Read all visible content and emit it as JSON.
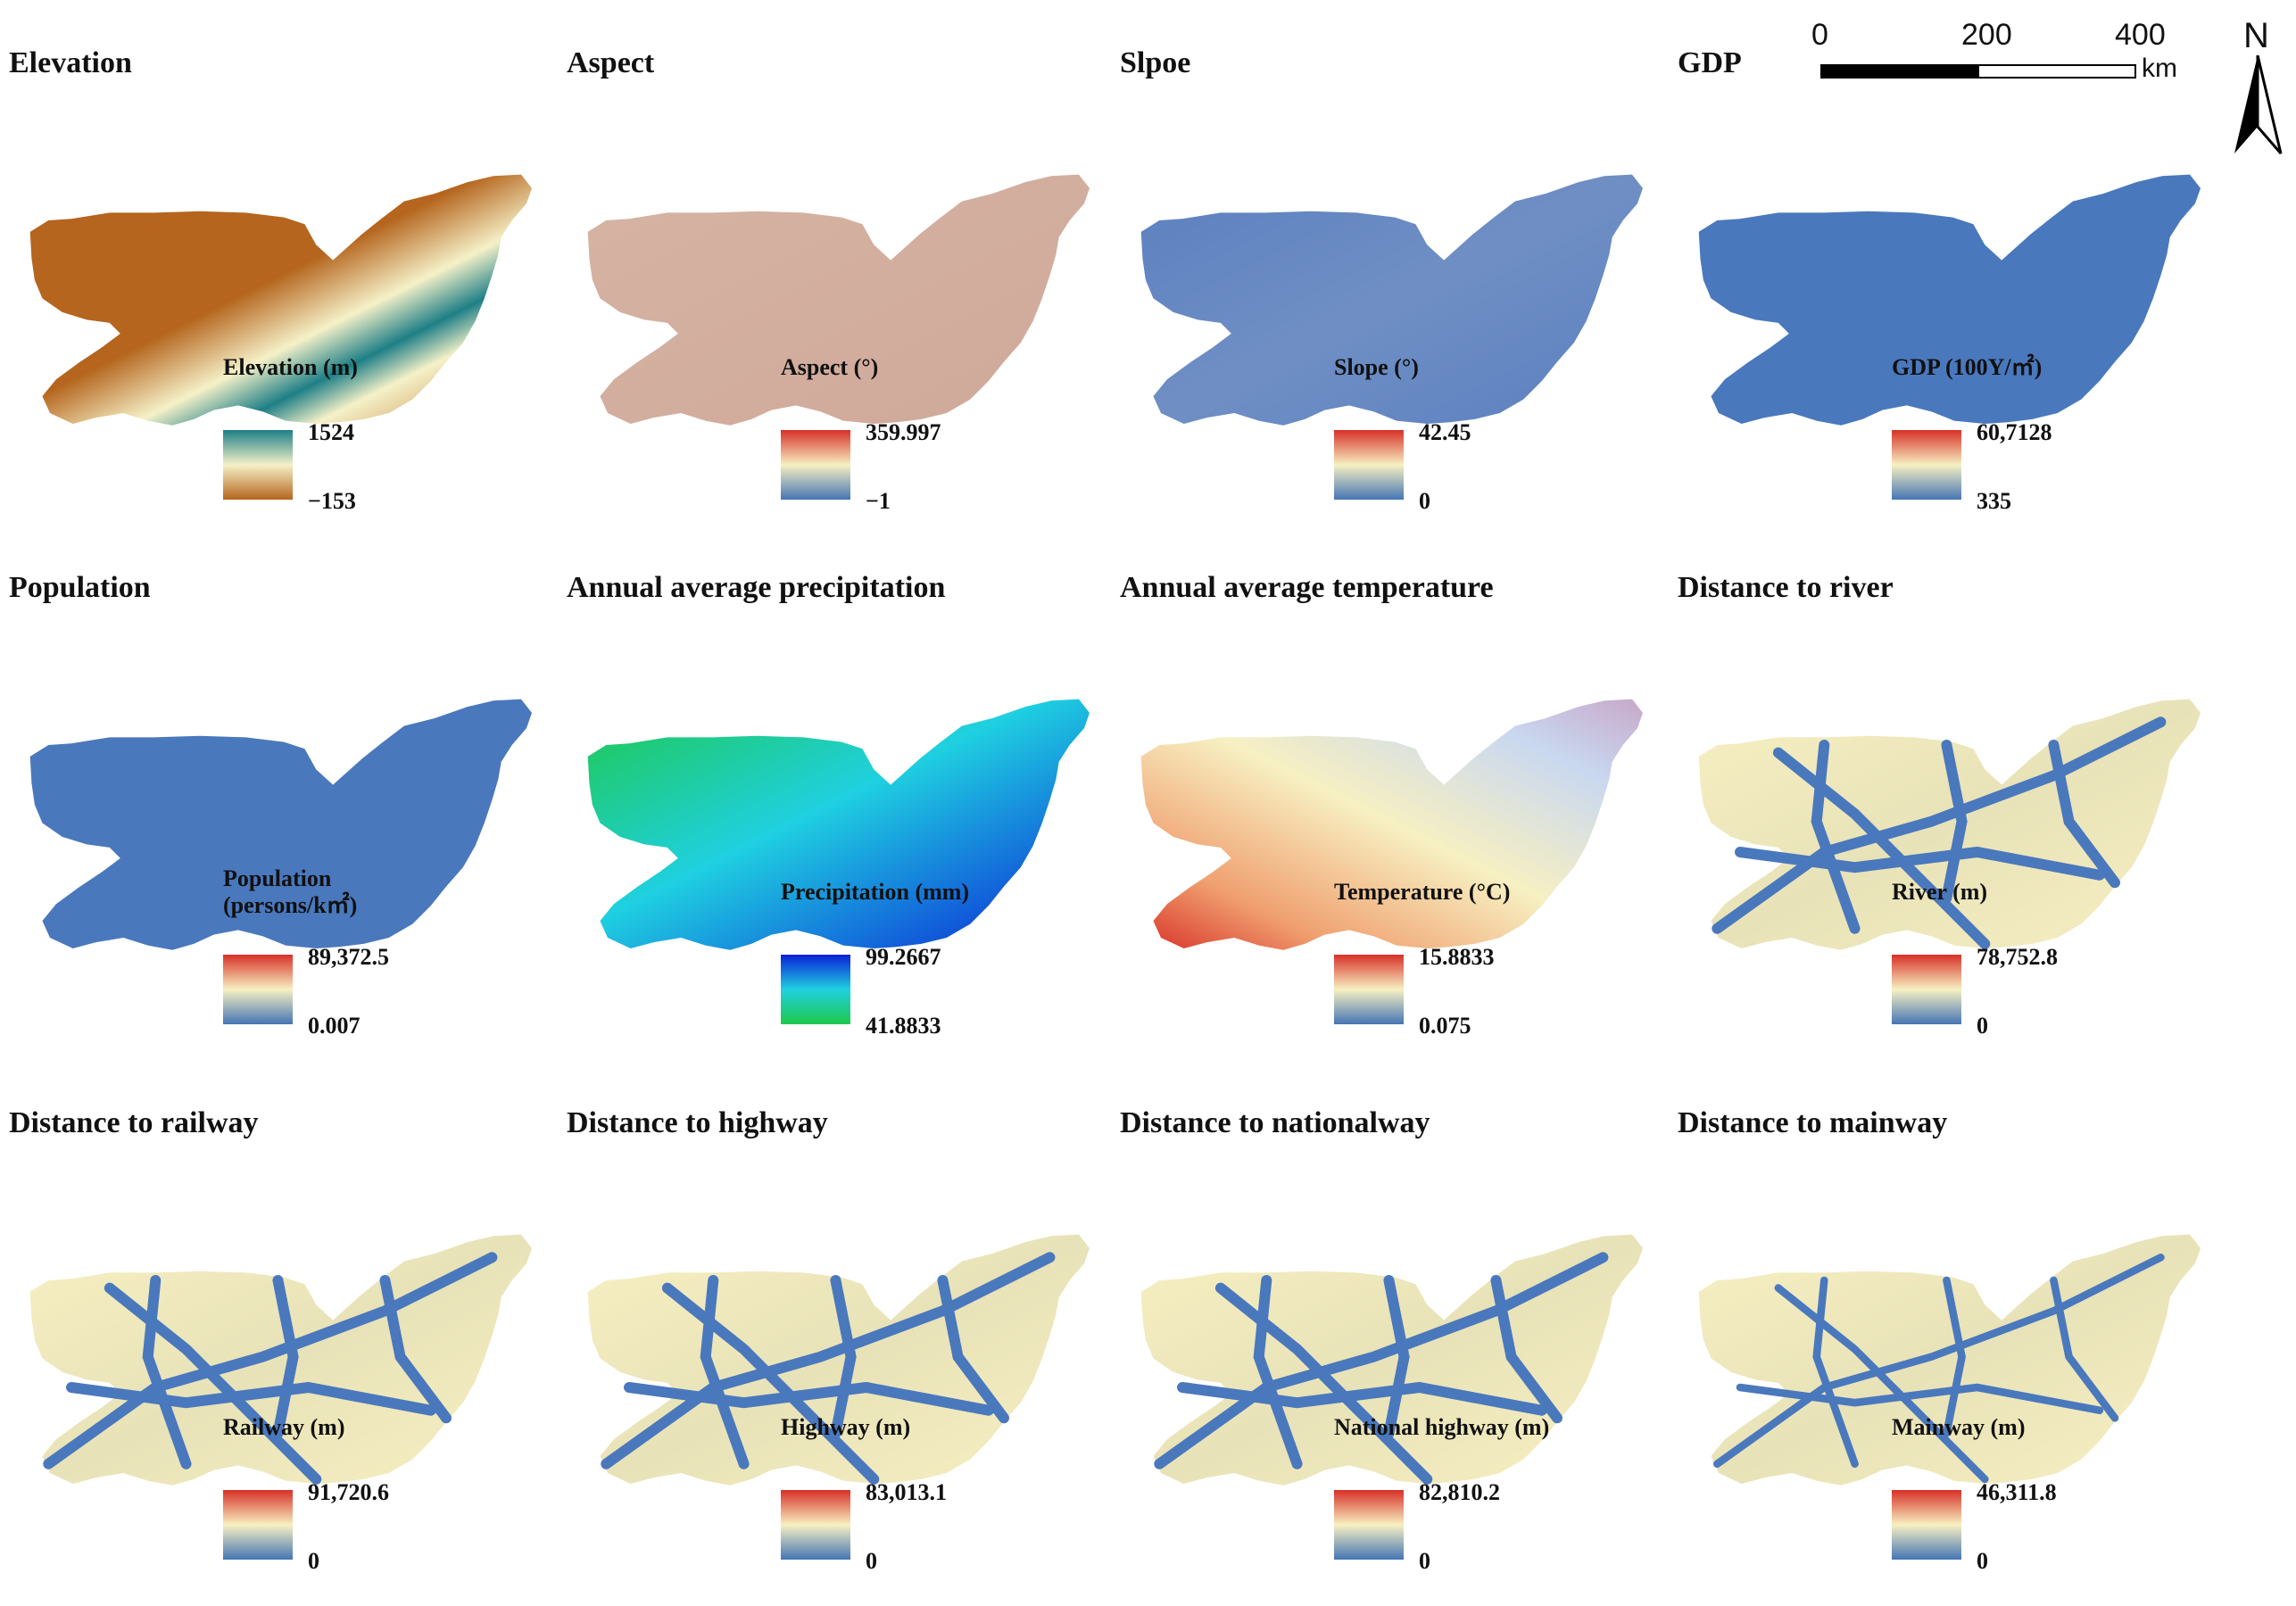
{
  "scale_bar": {
    "labels": [
      "0",
      "200",
      "400"
    ],
    "unit": "km"
  },
  "north_arrow": {
    "label": "N",
    "icon": "north-arrow-icon"
  },
  "panels": [
    {
      "id": "elevation",
      "title": "Elevation",
      "legend_title": "Elevation (m)",
      "max": "1524",
      "min": "−153",
      "ramp": [
        "#1e7f86",
        "#f5f1c8",
        "#b5651d"
      ],
      "fill": "elev"
    },
    {
      "id": "aspect",
      "title": "Aspect",
      "legend_title": "Aspect (°)",
      "max": "359.997",
      "min": "−1",
      "ramp": [
        "#d73027",
        "#f7f0c2",
        "#4575b4"
      ],
      "fill": "aspect"
    },
    {
      "id": "slope",
      "title": "Slpoe",
      "legend_title": "Slope (°)",
      "max": "42.45",
      "min": "0",
      "ramp": [
        "#d73027",
        "#f7f0c2",
        "#4575b4"
      ],
      "fill": "slope"
    },
    {
      "id": "gdp",
      "title": "GDP",
      "legend_title": "GDP (100Y/㎡)",
      "max": "60,7128",
      "min": "335",
      "ramp": [
        "#d73027",
        "#f7f0c2",
        "#4575b4"
      ],
      "fill": "gdp"
    },
    {
      "id": "population",
      "title": "Population",
      "legend_title": "Population (persons/k㎡)",
      "legend_title_line1": "Population",
      "legend_title_line2": "(persons/k㎡)",
      "max": "89,372.5",
      "min": "0.007",
      "ramp": [
        "#d73027",
        "#f7f0c2",
        "#4575b4"
      ],
      "fill": "pop"
    },
    {
      "id": "precipitation",
      "title": "Annual average precipitation",
      "legend_title": "Precipitation (mm)",
      "max": "99.2667",
      "min": "41.8833",
      "ramp": [
        "#0a1fd6",
        "#1fd0e0",
        "#1fc84a"
      ],
      "fill": "precip"
    },
    {
      "id": "temperature",
      "title": "Annual average temperature",
      "legend_title": "Temperature (°C)",
      "max": "15.8833",
      "min": "0.075",
      "ramp": [
        "#d73027",
        "#f7f0c2",
        "#4575b4"
      ],
      "fill": "temp"
    },
    {
      "id": "river",
      "title": "Distance to river",
      "legend_title": "River (m)",
      "max": "78,752.8",
      "min": "0",
      "ramp": [
        "#d73027",
        "#f7f0c2",
        "#4575b4"
      ],
      "fill": "dist"
    },
    {
      "id": "railway",
      "title": "Distance to railway",
      "legend_title": "Railway (m)",
      "max": "91,720.6",
      "min": "0",
      "ramp": [
        "#d73027",
        "#f7f0c2",
        "#4575b4"
      ],
      "fill": "dist"
    },
    {
      "id": "highway",
      "title": "Distance to highway",
      "legend_title": "Highway (m)",
      "max": "83,013.1",
      "min": "0",
      "ramp": [
        "#d73027",
        "#f7f0c2",
        "#4575b4"
      ],
      "fill": "dist"
    },
    {
      "id": "nationalway",
      "title": "Distance to nationalway",
      "legend_title": "National highway (m)",
      "max": "82,810.2",
      "min": "0",
      "ramp": [
        "#d73027",
        "#f7f0c2",
        "#4575b4"
      ],
      "fill": "dist"
    },
    {
      "id": "mainway",
      "title": "Distance to mainway",
      "legend_title": "Mainway (m)",
      "max": "46,311.8",
      "min": "0",
      "ramp": [
        "#d73027",
        "#f7f0c2",
        "#4575b4"
      ],
      "fill": "dist"
    }
  ]
}
